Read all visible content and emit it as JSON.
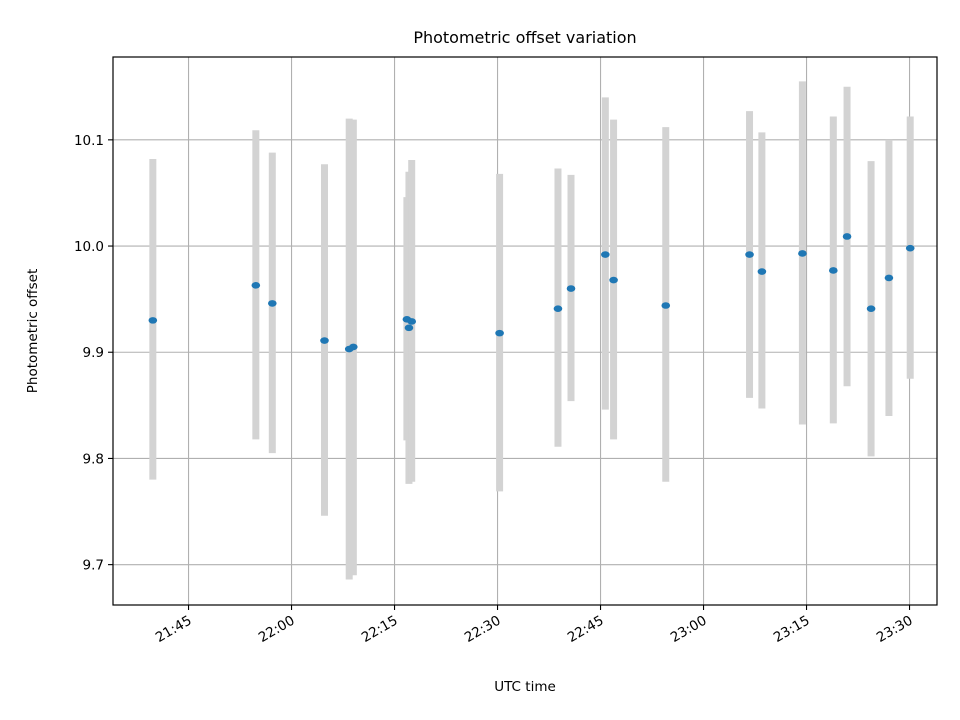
{
  "chart_data": {
    "type": "scatter",
    "title": "Photometric offset variation",
    "xlabel": "UTC time",
    "ylabel": "Photometric offset",
    "x_axis_kind": "time",
    "xlim": [
      "21:34",
      "23:34"
    ],
    "ylim": [
      9.662,
      10.178
    ],
    "grid": true,
    "x_tick_labels": [
      "21:45",
      "22:00",
      "22:15",
      "22:30",
      "22:45",
      "23:00",
      "23:15",
      "23:30"
    ],
    "y_tick_labels": [
      "9.7",
      "9.8",
      "9.9",
      "10.0",
      "10.1"
    ],
    "y_ticks": [
      9.7,
      9.8,
      9.9,
      10.0,
      10.1
    ],
    "point_color": "#1f77b4",
    "errorbar_color": "#d3d3d3",
    "points": [
      {
        "x": "21:39:48",
        "y": 9.93,
        "lo": 9.78,
        "hi": 10.082
      },
      {
        "x": "21:54:48",
        "y": 9.963,
        "lo": 9.818,
        "hi": 10.109
      },
      {
        "x": "21:57:12",
        "y": 9.946,
        "lo": 9.805,
        "hi": 10.088
      },
      {
        "x": "22:04:48",
        "y": 9.911,
        "lo": 9.746,
        "hi": 10.077
      },
      {
        "x": "22:08:24",
        "y": 9.903,
        "lo": 9.686,
        "hi": 10.12
      },
      {
        "x": "22:09:00",
        "y": 9.905,
        "lo": 9.69,
        "hi": 10.119
      },
      {
        "x": "22:16:48",
        "y": 9.931,
        "lo": 9.817,
        "hi": 10.046
      },
      {
        "x": "22:17:06",
        "y": 9.923,
        "lo": 9.776,
        "hi": 10.07
      },
      {
        "x": "22:17:30",
        "y": 9.929,
        "lo": 9.778,
        "hi": 10.081
      },
      {
        "x": "22:30:18",
        "y": 9.918,
        "lo": 9.769,
        "hi": 10.068
      },
      {
        "x": "22:38:48",
        "y": 9.941,
        "lo": 9.811,
        "hi": 10.073
      },
      {
        "x": "22:40:42",
        "y": 9.96,
        "lo": 9.854,
        "hi": 10.067
      },
      {
        "x": "22:45:42",
        "y": 9.992,
        "lo": 9.846,
        "hi": 10.14
      },
      {
        "x": "22:46:54",
        "y": 9.968,
        "lo": 9.818,
        "hi": 10.119
      },
      {
        "x": "22:54:30",
        "y": 9.944,
        "lo": 9.778,
        "hi": 10.112
      },
      {
        "x": "23:06:42",
        "y": 9.992,
        "lo": 9.857,
        "hi": 10.127
      },
      {
        "x": "23:08:30",
        "y": 9.976,
        "lo": 9.847,
        "hi": 10.107
      },
      {
        "x": "23:14:24",
        "y": 9.993,
        "lo": 9.832,
        "hi": 10.155
      },
      {
        "x": "23:18:54",
        "y": 9.977,
        "lo": 9.833,
        "hi": 10.122
      },
      {
        "x": "23:20:54",
        "y": 10.009,
        "lo": 9.868,
        "hi": 10.15
      },
      {
        "x": "23:24:24",
        "y": 9.941,
        "lo": 9.802,
        "hi": 10.08
      },
      {
        "x": "23:27:00",
        "y": 9.97,
        "lo": 9.84,
        "hi": 10.1
      },
      {
        "x": "23:30:06",
        "y": 9.998,
        "lo": 9.875,
        "hi": 10.122
      }
    ]
  }
}
